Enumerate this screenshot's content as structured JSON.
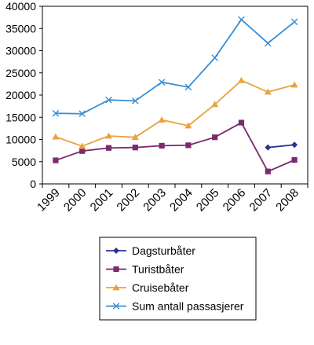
{
  "chart_data": {
    "type": "line",
    "title": "",
    "xlabel": "",
    "ylabel": "",
    "categories": [
      "1999",
      "2000",
      "2001",
      "2002",
      "2003",
      "2004",
      "2005",
      "2006",
      "2007",
      "2008"
    ],
    "ylim": [
      0,
      40000
    ],
    "yticks": [
      "0",
      "5000",
      "10000",
      "15000",
      "20000",
      "25000",
      "30000",
      "35000",
      "40000"
    ],
    "grid": false,
    "legend_position": "bottom",
    "series": [
      {
        "name": "Dagsturbåter",
        "color": "#2e3192",
        "marker": "diamond",
        "values": [
          null,
          null,
          null,
          null,
          null,
          null,
          null,
          null,
          8200,
          8800
        ]
      },
      {
        "name": "Turistbåter",
        "color": "#7b2a6e",
        "marker": "square",
        "values": [
          5300,
          7400,
          8100,
          8200,
          8600,
          8700,
          10500,
          13800,
          2800,
          5400
        ]
      },
      {
        "name": "Cruisebåter",
        "color": "#e8a33d",
        "marker": "triangle",
        "values": [
          10600,
          8500,
          10800,
          10500,
          14400,
          13100,
          17900,
          23300,
          20700,
          22300
        ]
      },
      {
        "name": "Sum antall passasjerer",
        "color": "#3a8fd6",
        "marker": "x",
        "values": [
          15900,
          15800,
          18900,
          18700,
          22900,
          21800,
          28400,
          37000,
          31700,
          36500
        ]
      }
    ]
  }
}
